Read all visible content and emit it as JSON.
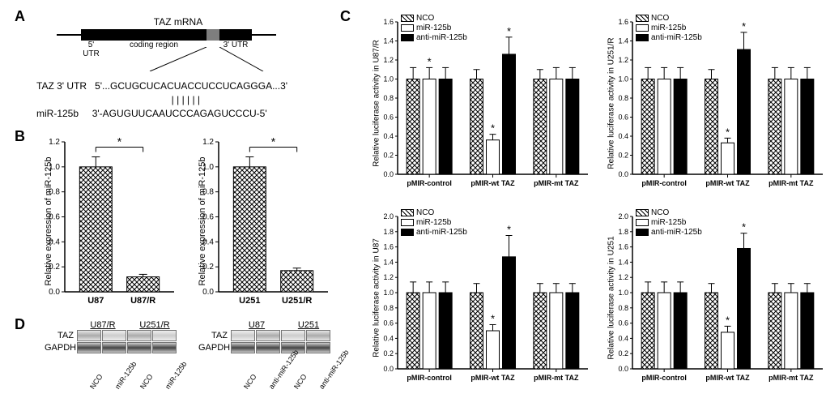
{
  "panelA": {
    "label": "A",
    "mrna_title": "TAZ mRNA",
    "utr5": "5' UTR",
    "coding": "coding region",
    "utr3": "3' UTR",
    "seq_label_taz": "TAZ 3' UTR",
    "seq_taz": "5'...GCUGCUCACUACCUCCUCAGGGA...3'",
    "seq_pipes": "                    | | | | | |  ",
    "seq_mir": "3'-AGUGUUCAAUCCCAGAGUCCCU-5'",
    "seq_label_mir": "miR-125b"
  },
  "panelB": {
    "label": "B",
    "charts": [
      {
        "ylabel": "Relative expression of miR-125b",
        "ytick_step": 0.2,
        "ylim": [
          0.0,
          1.2
        ],
        "categories": [
          "U87",
          "U87/R"
        ],
        "values": [
          1.0,
          0.12
        ],
        "errors": [
          0.08,
          0.02
        ],
        "bar_pattern": "check",
        "significance": "*"
      },
      {
        "ylabel": "Relative expression of miR-125b",
        "ytick_step": 0.2,
        "ylim": [
          0.0,
          1.2
        ],
        "categories": [
          "U251",
          "U251/R"
        ],
        "values": [
          1.0,
          0.17
        ],
        "errors": [
          0.08,
          0.02
        ],
        "bar_pattern": "check",
        "significance": "*"
      }
    ]
  },
  "panelC": {
    "label": "C",
    "legend": [
      "NCO",
      "miR-125b",
      "anti-miR-125b"
    ],
    "legend_patterns": [
      "check",
      "white",
      "black"
    ],
    "x_categories": [
      "pMIR-control",
      "pMIR-wt TAZ",
      "pMIR-mt TAZ"
    ],
    "ytick_step": 0.2,
    "charts": [
      {
        "ylabel": "Relative luciferase activity in U87/R",
        "ylim": [
          0.0,
          1.6
        ],
        "values": [
          [
            1.0,
            1.0,
            1.0
          ],
          [
            1.0,
            0.36,
            1.26
          ],
          [
            1.0,
            1.0,
            1.0
          ]
        ],
        "errors": [
          [
            0.12,
            0.12,
            0.12
          ],
          [
            0.1,
            0.06,
            0.18
          ],
          [
            0.1,
            0.12,
            0.12
          ]
        ],
        "sig": [
          null,
          "*",
          null,
          null,
          "*",
          "*",
          null,
          null,
          null
        ]
      },
      {
        "ylabel": "Relative luciferase activity in U251/R",
        "ylim": [
          0.0,
          1.6
        ],
        "values": [
          [
            1.0,
            1.0,
            1.0
          ],
          [
            1.0,
            0.33,
            1.31
          ],
          [
            1.0,
            1.0,
            1.0
          ]
        ],
        "errors": [
          [
            0.12,
            0.12,
            0.12
          ],
          [
            0.1,
            0.05,
            0.18
          ],
          [
            0.12,
            0.12,
            0.12
          ]
        ],
        "sig": [
          null,
          null,
          null,
          null,
          "*",
          "*",
          null,
          null,
          null
        ]
      },
      {
        "ylabel": "Relative luciferase activity in U87",
        "ylim": [
          0.0,
          2.0
        ],
        "values": [
          [
            1.0,
            1.0,
            1.0
          ],
          [
            1.0,
            0.5,
            1.47
          ],
          [
            1.0,
            1.0,
            1.0
          ]
        ],
        "errors": [
          [
            0.14,
            0.14,
            0.14
          ],
          [
            0.12,
            0.08,
            0.28
          ],
          [
            0.12,
            0.12,
            0.12
          ]
        ],
        "sig": [
          null,
          null,
          null,
          null,
          "*",
          "*",
          null,
          null,
          null
        ]
      },
      {
        "ylabel": "Relative luciferase activity in U251",
        "ylim": [
          0.0,
          2.0
        ],
        "values": [
          [
            1.0,
            1.0,
            1.0
          ],
          [
            1.0,
            0.48,
            1.58
          ],
          [
            1.0,
            1.0,
            1.0
          ]
        ],
        "errors": [
          [
            0.14,
            0.14,
            0.14
          ],
          [
            0.12,
            0.08,
            0.2
          ],
          [
            0.12,
            0.12,
            0.12
          ]
        ],
        "sig": [
          null,
          null,
          null,
          null,
          "*",
          "*",
          null,
          null,
          null
        ]
      }
    ]
  },
  "panelD": {
    "label": "D",
    "blots": [
      {
        "headers": [
          "U87/R",
          "U251/R"
        ],
        "rows": [
          "TAZ",
          "GAPDH"
        ],
        "lanes": [
          "NCO",
          "miR-125b",
          "NCO",
          "miR-125b"
        ],
        "taz_intensity": [
          "medium",
          "faint",
          "medium",
          "faint"
        ],
        "gapdh_intensity": [
          "strong",
          "strong",
          "strong",
          "strong"
        ]
      },
      {
        "headers": [
          "U87",
          "U251"
        ],
        "rows": [
          "TAZ",
          "GAPDH"
        ],
        "lanes": [
          "NCO",
          "anti-miR-125b",
          "NCO",
          "anti-miR-125b"
        ],
        "taz_intensity": [
          "faint",
          "medium",
          "faint",
          "medium"
        ],
        "gapdh_intensity": [
          "strong",
          "strong",
          "strong",
          "strong"
        ]
      }
    ]
  },
  "colors": {
    "black": "#000000",
    "white": "#ffffff",
    "check": "#000000"
  },
  "fonts": {
    "panel_label_size": 18,
    "axis_size": 11,
    "tick_size": 10
  }
}
